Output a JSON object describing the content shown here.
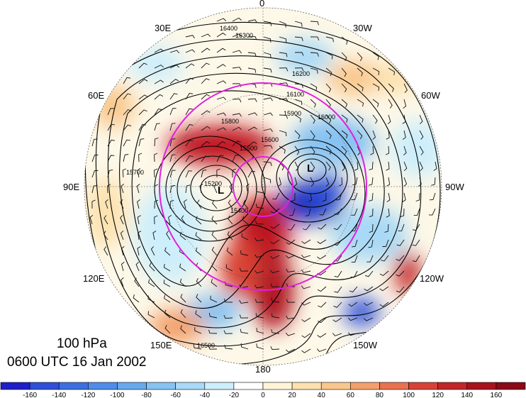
{
  "caption": {
    "level": "100 hPa",
    "time": "0600 UTC 16 Jan 2002"
  },
  "longitude_labels": [
    "0",
    "30W",
    "60W",
    "90W",
    "120W",
    "150W",
    "180",
    "150E",
    "120E",
    "90E",
    "60E",
    "30E"
  ],
  "contour_labels": [
    "16400",
    "16300",
    "16200",
    "16100",
    "16000",
    "15900",
    "15800",
    "15700",
    "15600",
    "15500",
    "16500",
    "15400",
    "15200"
  ],
  "lows": [
    "L",
    "L"
  ],
  "colorbar": {
    "labels": [
      "-160",
      "-140",
      "-120",
      "-100",
      "-80",
      "-60",
      "-40",
      "-20",
      "0",
      "20",
      "40",
      "60",
      "80",
      "100",
      "120",
      "140",
      "160"
    ],
    "colors": [
      "#1f1fc8",
      "#2e4fd8",
      "#3c6fe0",
      "#4f8de8",
      "#66a9ee",
      "#86c2f2",
      "#a8d9f6",
      "#cdeefb",
      "#ffffff",
      "#fff5d6",
      "#fde2b0",
      "#f9c78c",
      "#f3a06b",
      "#e9724f",
      "#d84236",
      "#c22628",
      "#a8121e",
      "#8a0a16"
    ]
  },
  "colors": {
    "contour": "#000000",
    "rings": "#e020e0",
    "barbs": "#111111"
  }
}
